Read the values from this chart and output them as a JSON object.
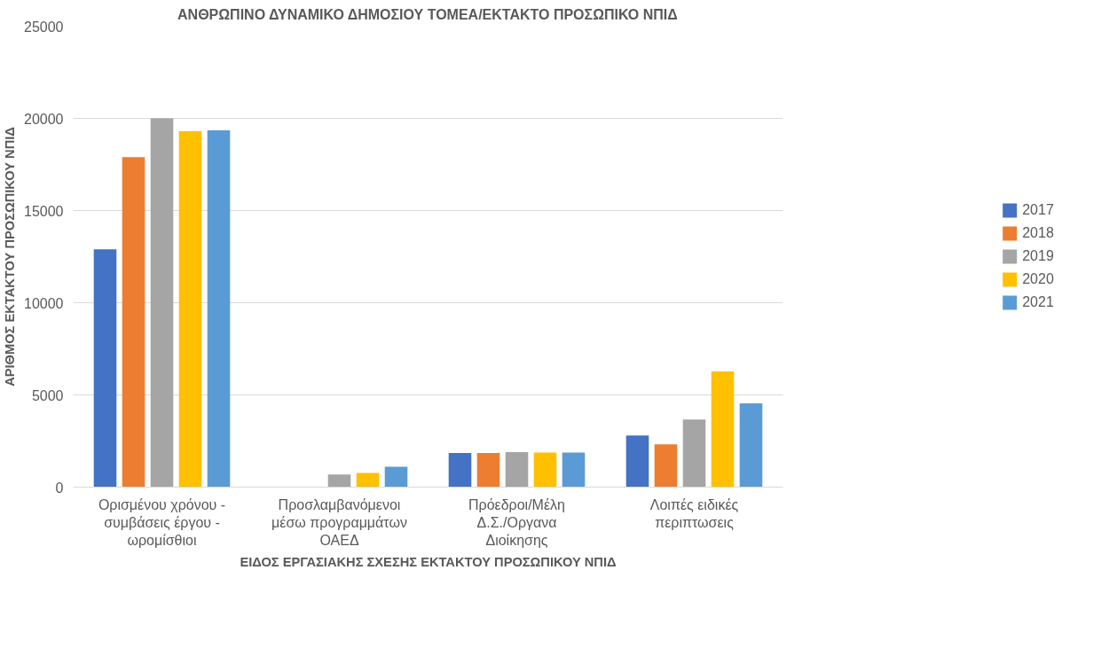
{
  "chart_data": {
    "type": "bar",
    "title": "ΑΝΘΡΩΠΙΝΟ ΔΥΝΑΜΙΚΟ ΔΗΜΟΣΙΟΥ ΤΟΜΕΑ/ΕΚΤΑΚΤΟ ΠΡΟΣΩΠΙΚΟ ΝΠΙΔ",
    "xlabel": "ΕΙΔΟΣ ΕΡΓΑΣΙΑΚΗΣ ΣΧΕΣΗΣ ΕΚΤΑΚΤΟΥ ΠΡΟΣΩΠΙΚΟΥ ΝΠΙΔ",
    "ylabel": "ΑΡΙΘΜΟΣ ΕΚΤΑΚΤΟΥ ΠΡΟΣΩΠΙΚΟΥ ΝΠΙΔ",
    "categories": [
      "Ορισμένου χρόνου - συμβάσεις έργου - ωρομίσθιοι",
      "Προσλαμβανόμενοι μέσω προγραμμάτων ΟΑΕΔ",
      "Πρόεδροι/Μέλη Δ.Σ./Οργανα Διοίκησης",
      "Λοιπές ειδικές περιπτωσεις"
    ],
    "series": [
      {
        "name": "2017",
        "color": "#4472c4",
        "values": [
          12900,
          null,
          1850,
          2800
        ]
      },
      {
        "name": "2018",
        "color": "#ed7d31",
        "values": [
          17900,
          null,
          1850,
          2320
        ]
      },
      {
        "name": "2019",
        "color": "#a5a5a5",
        "values": [
          20000,
          680,
          1900,
          3670
        ]
      },
      {
        "name": "2020",
        "color": "#ffc000",
        "values": [
          19300,
          770,
          1880,
          6270
        ]
      },
      {
        "name": "2021",
        "color": "#5b9bd5",
        "values": [
          19350,
          1100,
          1880,
          4540
        ]
      }
    ],
    "ylim": [
      0,
      25000
    ],
    "yticks": [
      0,
      5000,
      10000,
      15000,
      20000,
      25000
    ],
    "grid": "y",
    "legend": "right"
  }
}
